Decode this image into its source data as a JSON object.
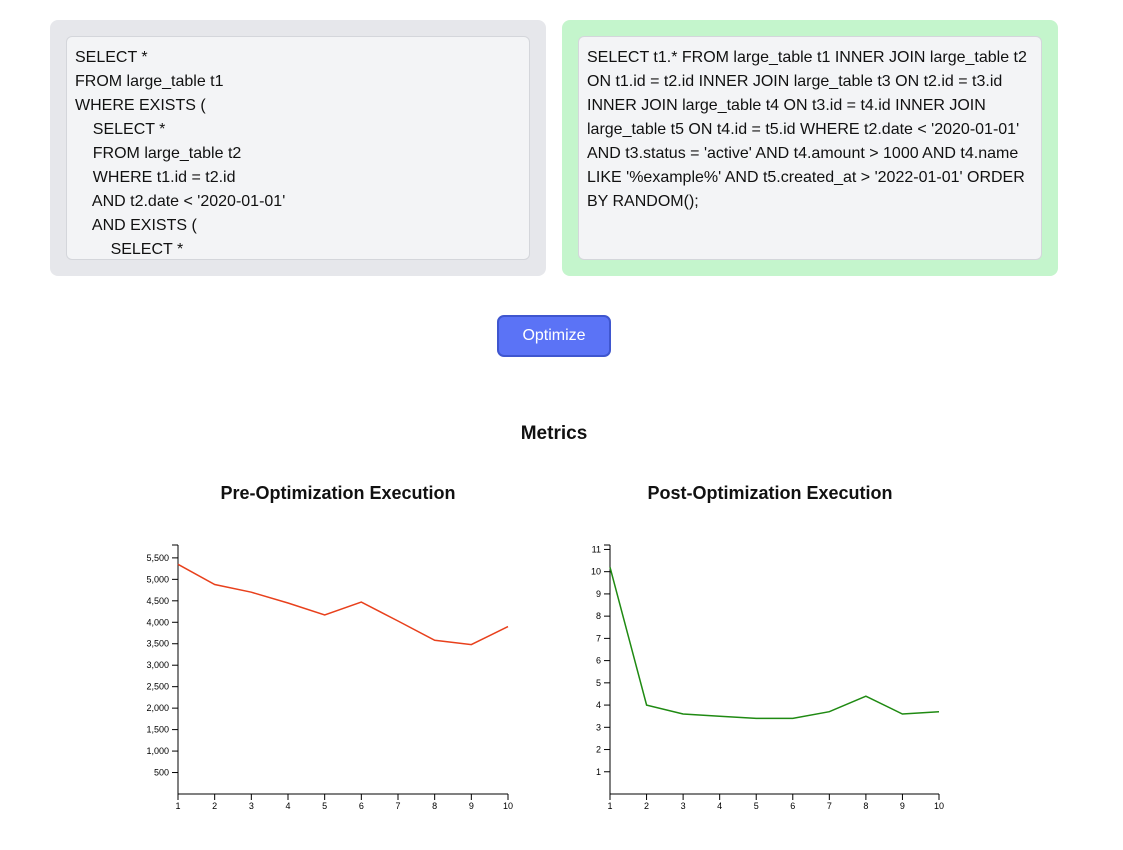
{
  "editors": {
    "original_query": "SELECT *\nFROM large_table t1\nWHERE EXISTS (\n    SELECT *\n    FROM large_table t2\n    WHERE t1.id = t2.id\n    AND t2.date < '2020-01-01'\n    AND EXISTS (\n        SELECT *",
    "optimized_query": "SELECT t1.* FROM large_table t1 INNER JOIN large_table t2 ON t1.id = t2.id INNER JOIN large_table t3 ON t2.id = t3.id INNER JOIN large_table t4 ON t3.id = t4.id INNER JOIN large_table t5 ON t4.id = t5.id WHERE t2.date < '2020-01-01' AND t3.status = 'active' AND t4.amount > 1000 AND t4.name LIKE '%example%' AND t5.created_at > '2022-01-01' ORDER BY RANDOM();"
  },
  "actions": {
    "optimize_label": "Optimize"
  },
  "metrics": {
    "title": "Metrics"
  },
  "colors": {
    "pre_line": "#e8401c",
    "post_line": "#1f8a12"
  },
  "chart_data": [
    {
      "type": "line",
      "title": "Pre-Optimization Execution",
      "x": [
        1,
        2,
        3,
        4,
        5,
        6,
        7,
        8,
        9,
        10
      ],
      "series": [
        {
          "values": [
            5350,
            4880,
            4700,
            4450,
            4170,
            4470,
            4030,
            3580,
            3480,
            3900
          ]
        }
      ],
      "xlim": [
        1,
        10
      ],
      "ylim": [
        0,
        5800
      ],
      "yticks": [
        500,
        1000,
        1500,
        2000,
        2500,
        3000,
        3500,
        4000,
        4500,
        5000,
        5500
      ],
      "ytick_labels": [
        "500",
        "1,000",
        "1,500",
        "2,000",
        "2,500",
        "3,000",
        "3,500",
        "4,000",
        "4,500",
        "5,000",
        "5,500"
      ],
      "xticks": [
        1,
        2,
        3,
        4,
        5,
        6,
        7,
        8,
        9,
        10
      ],
      "xlabel": "",
      "ylabel": "",
      "grid": false
    },
    {
      "type": "line",
      "title": "Post-Optimization Execution",
      "x": [
        1,
        2,
        3,
        4,
        5,
        6,
        7,
        8,
        9,
        10
      ],
      "series": [
        {
          "values": [
            10.2,
            4.0,
            3.6,
            3.5,
            3.4,
            3.4,
            3.7,
            4.4,
            3.6,
            3.7
          ]
        }
      ],
      "xlim": [
        1,
        10
      ],
      "ylim": [
        0,
        11.2
      ],
      "yticks": [
        1,
        2,
        3,
        4,
        5,
        6,
        7,
        8,
        9,
        10,
        11
      ],
      "ytick_labels": [
        "1",
        "2",
        "3",
        "4",
        "5",
        "6",
        "7",
        "8",
        "9",
        "10",
        "11"
      ],
      "xticks": [
        1,
        2,
        3,
        4,
        5,
        6,
        7,
        8,
        9,
        10
      ],
      "xlabel": "",
      "ylabel": "",
      "grid": false
    }
  ]
}
